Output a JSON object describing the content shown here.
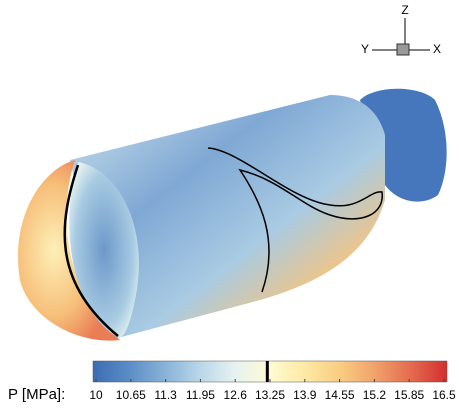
{
  "chart_data": {
    "type": "colorbar",
    "label": "P [MPa]:",
    "clim": [
      10,
      16.5
    ],
    "ticks": [
      10,
      10.65,
      11.3,
      11.95,
      12.6,
      13.25,
      13.9,
      14.55,
      15.2,
      15.85,
      16.5
    ],
    "colors": [
      "#3b6db4",
      "#5a8cc6",
      "#87b1d8",
      "#b8d6e8",
      "#e6f2f2",
      "#fffbd2",
      "#fde9a4",
      "#f9cc80",
      "#f0a06a",
      "#e46a4f",
      "#d42e2e"
    ],
    "marker": 13.2,
    "axis_labels": {
      "z": "Z",
      "y": "Y",
      "x": "X"
    }
  }
}
